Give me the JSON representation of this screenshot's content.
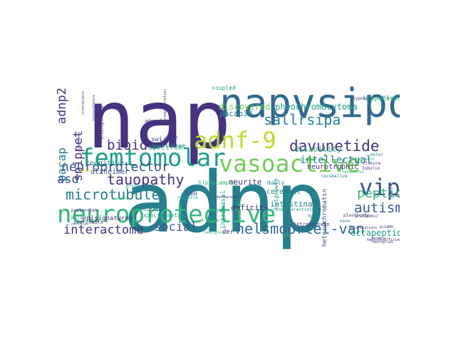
{
  "word_cloud": {
    "colors": {
      "purple": "#46327e",
      "indigo": "#3b528b",
      "blue": "#365c8d",
      "steel": "#31688e",
      "teal": "#277f8e",
      "green_teal": "#1f9e89",
      "green": "#35b779",
      "lime": "#6ece58",
      "yellow_green": "#b5de2b",
      "yellow": "#d8e219"
    },
    "words": [
      {
        "text": "adnp",
        "weight": 1.0,
        "color": "teal"
      },
      {
        "text": "nap",
        "weight": 0.98,
        "color": "purple"
      },
      {
        "text": "napvsipq",
        "weight": 0.62,
        "color": "steel"
      },
      {
        "text": "neuroprotective",
        "weight": 0.46,
        "color": "green"
      },
      {
        "text": "femtomolar",
        "weight": 0.45,
        "color": "green_teal"
      },
      {
        "text": "vasoactive",
        "weight": 0.44,
        "color": "lime"
      },
      {
        "text": "adnf-9",
        "weight": 0.42,
        "color": "yellow_green"
      },
      {
        "text": "vip",
        "weight": 0.4,
        "color": "indigo"
      },
      {
        "text": "helsmoortel-van",
        "weight": 0.27,
        "color": "steel"
      },
      {
        "text": "davunetide",
        "weight": 0.27,
        "color": "purple"
      },
      {
        "text": "sallrsipa",
        "weight": 0.27,
        "color": "teal"
      },
      {
        "text": "microtubule",
        "weight": 0.25,
        "color": "teal"
      },
      {
        "text": "tauopathy",
        "weight": 0.25,
        "color": "purple"
      },
      {
        "text": "neuroprotector",
        "weight": 0.24,
        "color": "indigo"
      },
      {
        "text": "autism",
        "weight": 0.24,
        "color": "blue"
      },
      {
        "text": "peptide",
        "weight": 0.22,
        "color": "green"
      },
      {
        "text": "interactome",
        "weight": 0.22,
        "color": "purple"
      },
      {
        "text": "social",
        "weight": 0.22,
        "color": "blue"
      },
      {
        "text": "bioid",
        "weight": 0.23,
        "color": "purple"
      },
      {
        "text": "snippet",
        "weight": 0.2,
        "color": "purple"
      },
      {
        "text": "adnp2",
        "weight": 0.2,
        "color": "purple"
      },
      {
        "text": "pacap",
        "weight": 0.2,
        "color": "teal"
      },
      {
        "text": "asd",
        "weight": 0.2,
        "color": "indigo"
      },
      {
        "text": "intellectual",
        "weight": 0.17,
        "color": "teal"
      },
      {
        "text": "octapeptide",
        "weight": 0.15,
        "color": "green_teal"
      },
      {
        "text": "pheochromocytoma",
        "weight": 0.13,
        "color": "green_teal"
      },
      {
        "text": "disability",
        "weight": 0.12,
        "color": "green"
      },
      {
        "text": "neurotrophic",
        "weight": 0.11,
        "color": "purple"
      },
      {
        "text": "discovered",
        "weight": 0.13,
        "color": "lime"
      },
      {
        "text": "pacap38",
        "weight": 0.12,
        "color": "teal"
      },
      {
        "text": "hippocampus",
        "weight": 0.1,
        "color": "green"
      },
      {
        "text": "spectrum",
        "weight": 0.11,
        "color": "green"
      },
      {
        "text": "alzheimer",
        "weight": 0.11,
        "color": "indigo"
      },
      {
        "text": "cognitive",
        "weight": 0.11,
        "color": "teal"
      },
      {
        "text": "neurite",
        "weight": 0.12,
        "color": "purple"
      },
      {
        "text": "intestinal",
        "weight": 0.12,
        "color": "teal"
      },
      {
        "text": "deficits",
        "weight": 0.12,
        "color": "purple"
      },
      {
        "text": "snv",
        "weight": 0.11,
        "color": "green_teal"
      },
      {
        "text": "cerebral",
        "weight": 0.1,
        "color": "teal"
      },
      {
        "text": "tau",
        "weight": 0.11,
        "color": "indigo"
      },
      {
        "text": "swi/snf",
        "weight": 0.1,
        "color": "indigo"
      },
      {
        "text": "label-free",
        "weight": 0.09,
        "color": "teal"
      },
      {
        "text": "coupled",
        "weight": 0.09,
        "color": "green_teal"
      },
      {
        "text": "daily",
        "weight": 0.09,
        "color": "teal"
      },
      {
        "text": "der",
        "weight": 0.1,
        "color": "purple"
      },
      {
        "text": "intranasal",
        "weight": 0.1,
        "color": "green_teal"
      },
      {
        "text": "cp201",
        "weight": 0.1,
        "color": "green_teal"
      },
      {
        "text": "heterochromatin",
        "weight": 0.1,
        "color": "indigo"
      },
      {
        "text": "hippocampal",
        "weight": 0.1,
        "color": "green"
      },
      {
        "text": "outgrowth",
        "weight": 0.09,
        "color": "green_teal"
      },
      {
        "text": "episignatures",
        "weight": 0.1,
        "color": "purple"
      },
      {
        "text": "spectrometry",
        "weight": 0.1,
        "color": "green_teal"
      },
      {
        "text": "mild",
        "weight": 0.08,
        "color": "green_teal"
      },
      {
        "text": "searchable",
        "weight": 0.08,
        "color": "purple"
      },
      {
        "text": "ethanol",
        "weight": 0.08,
        "color": "teal"
      },
      {
        "text": "postmortem",
        "weight": 0.07,
        "color": "purple"
      },
      {
        "text": "protect",
        "weight": 0.07,
        "color": "green_teal"
      },
      {
        "text": "resource",
        "weight": 0.07,
        "color": "green_teal"
      },
      {
        "text": "adenylate",
        "weight": 0.08,
        "color": "purple"
      },
      {
        "text": "brain",
        "weight": 0.07,
        "color": "yellow"
      },
      {
        "text": "tetrodotoxin",
        "weight": 0.08,
        "color": "purple"
      },
      {
        "text": "nondifferentiated",
        "weight": 0.07,
        "color": "green_teal"
      },
      {
        "text": "vpac2",
        "weight": 0.08,
        "color": "purple"
      },
      {
        "text": "tubulin",
        "weight": 0.07,
        "color": "purple"
      },
      {
        "text": "syndromic",
        "weight": 0.07,
        "color": "green_teal"
      },
      {
        "text": "closure",
        "weight": 0.07,
        "color": "purple"
      },
      {
        "text": "plasticity",
        "weight": 0.07,
        "color": "purple"
      },
      {
        "text": "proteomic",
        "weight": 0.07,
        "color": "purple"
      },
      {
        "text": "haploinsufficient",
        "weight": 0.06,
        "color": "purple"
      },
      {
        "text": "neuroglial",
        "weight": 0.06,
        "color": "purple"
      },
      {
        "text": "novo",
        "weight": 0.07,
        "color": "teal"
      },
      {
        "text": "cerebellum",
        "weight": 0.07,
        "color": "teal"
      },
      {
        "text": "hypoxia",
        "weight": 0.07,
        "color": "purple"
      },
      {
        "text": "7-ni",
        "weight": 0.08,
        "color": "teal"
      },
      {
        "text": "motor",
        "weight": 0.07,
        "color": "teal"
      },
      {
        "text": "hemisphere",
        "weight": 0.06,
        "color": "green"
      },
      {
        "text": "8-amino",
        "weight": 0.07,
        "color": "green_teal"
      },
      {
        "text": "durable",
        "weight": 0.06,
        "color": "purple"
      },
      {
        "text": "purifications",
        "weight": 0.06,
        "color": "purple"
      },
      {
        "text": "pc12",
        "weight": 0.06,
        "color": "purple"
      },
      {
        "text": "d40",
        "weight": 0.06,
        "color": "purple"
      },
      {
        "text": "behavioral",
        "weight": 0.06,
        "color": "green"
      },
      {
        "text": "speech",
        "weight": 0.06,
        "color": "green"
      },
      {
        "text": "cortical",
        "weight": 0.06,
        "color": "teal"
      },
      {
        "text": "schizophrenia",
        "weight": 0.06,
        "color": "purple"
      },
      {
        "text": "disorders",
        "weight": 0.06,
        "color": "purple"
      },
      {
        "text": "neurodegeneration",
        "weight": 0.06,
        "color": "purple"
      },
      {
        "text": "interactors",
        "weight": 0.06,
        "color": "purple"
      },
      {
        "text": "biosynthesis",
        "weight": 0.06,
        "color": "purple"
      },
      {
        "text": "hpl",
        "weight": 0.06,
        "color": "teal"
      },
      {
        "text": "photographs",
        "weight": 0.06,
        "color": "purple"
      },
      {
        "text": "tip",
        "weight": 0.06,
        "color": "lime"
      }
    ]
  }
}
